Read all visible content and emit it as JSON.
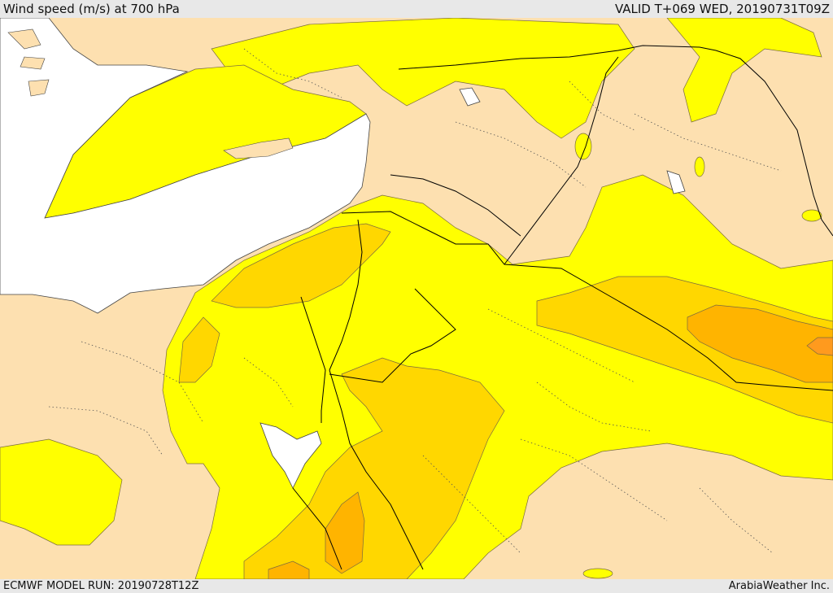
{
  "header": {
    "title": "Wind speed (m/s) at 700 hPa",
    "valid": "VALID T+069 WED, 20190731T09Z"
  },
  "footer": {
    "model_run": "ECMWF MODEL RUN: 20190728T12Z",
    "credit": "ArabiaWeather Inc."
  },
  "colors": {
    "land": "#fde0b0",
    "sea": "#ffffff",
    "wind_band_1": "#ffff00",
    "wind_band_2": "#ffd700",
    "wind_band_3": "#ffb400",
    "wind_band_4": "#ff9a1e",
    "border": "#000000"
  }
}
